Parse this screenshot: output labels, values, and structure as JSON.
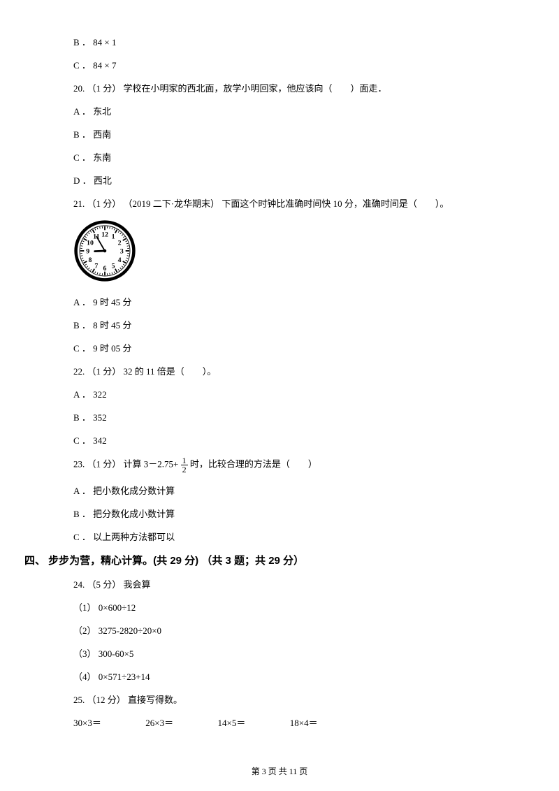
{
  "opts_prev": {
    "b": "B ． 84 × 1",
    "c": "C ． 84 × 7"
  },
  "q20": {
    "text": "20. （1 分） 学校在小明家的西北面，放学小明回家，他应该向（　　）面走．",
    "a": "A ． 东北",
    "b": "B ． 西南",
    "c": "C ． 东南",
    "d": "D ． 西北"
  },
  "q21": {
    "text": "21. （1 分） （2019 二下·龙华期末） 下面这个时钟比准确时间快 10 分，准确时间是（　　）。",
    "a": "A ． 9 时 45 分",
    "b": "B ． 8 时 45 分",
    "c": "C ． 9 时 05 分"
  },
  "q22": {
    "text": "22. （1 分） 32 的 11 倍是（　　）。",
    "a": "A ． 322",
    "b": "B ． 352",
    "c": "C ． 342"
  },
  "q23": {
    "prefix": "23. （1 分） 计算 3－2.75+ ",
    "suffix": " 时，比较合理的方法是（　　）",
    "frac_num": "1",
    "frac_den": "2",
    "a": "A ． 把小数化成分数计算",
    "b": "B ． 把分数化成小数计算",
    "c": "C ． 以上两种方法都可以"
  },
  "section4": {
    "heading": "四、 步步为营，精心计算。(共 29 分) （共 3 题；共 29 分）"
  },
  "q24": {
    "text": "24. （5 分） 我会算",
    "s1": "（1） 0×600÷12",
    "s2": "（2） 3275-2820÷20×0",
    "s3": "（3） 300-60×5",
    "s4": "（4） 0×571÷23+14"
  },
  "q25": {
    "text": "25. （12 分） 直接写得数。",
    "r1": {
      "c1": "30×3＝",
      "c2": "26×3＝",
      "c3": "14×5＝",
      "c4": "18×4＝"
    }
  },
  "footer": "第 3 页 共 11 页",
  "clock": {
    "hour": 8,
    "minute": 55,
    "size": 90,
    "border_color": "#000000",
    "face_color": "#ffffff"
  }
}
